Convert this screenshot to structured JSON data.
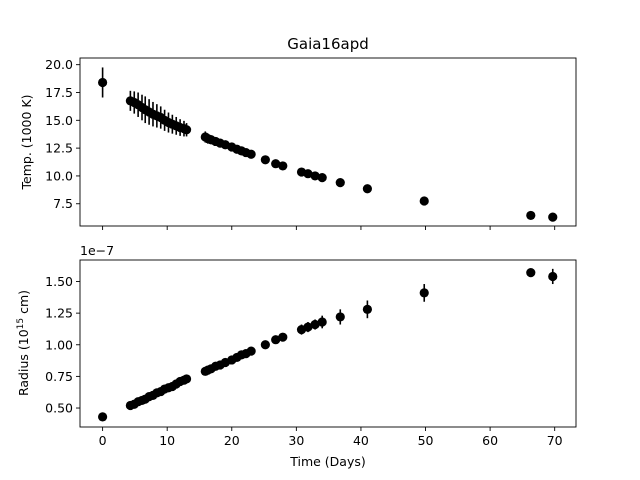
{
  "chart_data": [
    {
      "type": "scatter",
      "title": "Gaia16apd",
      "xlabel": "",
      "ylabel": "Temp. (1000 K)",
      "xlim": [
        -3.5,
        73.3
      ],
      "ylim": [
        5.5,
        20.6
      ],
      "xticks": [
        0,
        10,
        20,
        30,
        40,
        50,
        60,
        70
      ],
      "yticks": [
        7.5,
        10.0,
        12.5,
        15.0,
        17.5,
        20.0
      ],
      "ytick_labels": [
        "7.5",
        "10.0",
        "12.5",
        "15.0",
        "17.5",
        "20.0"
      ],
      "show_xtick_labels": false,
      "grid": false,
      "series": [
        {
          "marker": "circle",
          "color": "#000000",
          "x": [
            0.0,
            4.3,
            4.9,
            5.5,
            6.1,
            6.6,
            7.2,
            7.8,
            8.4,
            9.0,
            9.6,
            10.2,
            10.8,
            11.4,
            12.0,
            12.6,
            13.0,
            15.9,
            16.3,
            16.8,
            17.5,
            18.2,
            19.0,
            20.0,
            20.8,
            21.5,
            22.2,
            23.0,
            25.2,
            26.8,
            27.9,
            30.8,
            31.8,
            32.9,
            34.0,
            36.8,
            41.0,
            49.8,
            66.3,
            69.7
          ],
          "y": [
            18.4,
            16.75,
            16.6,
            16.4,
            16.15,
            15.95,
            15.75,
            15.55,
            15.4,
            15.25,
            15.0,
            14.8,
            14.65,
            14.5,
            14.35,
            14.25,
            14.15,
            13.5,
            13.35,
            13.25,
            13.1,
            12.95,
            12.8,
            12.6,
            12.4,
            12.25,
            12.1,
            11.95,
            11.45,
            11.1,
            10.9,
            10.35,
            10.2,
            10.0,
            9.85,
            9.4,
            8.85,
            7.75,
            6.45,
            6.3
          ],
          "yerr": [
            1.35,
            0.9,
            1.0,
            1.1,
            1.15,
            1.2,
            1.15,
            1.1,
            1.05,
            1.0,
            0.95,
            0.9,
            0.85,
            0.8,
            0.75,
            0.7,
            0.6,
            0.5,
            0.45,
            0.4,
            0.35,
            0.35,
            0.3,
            0.3,
            0.25,
            0.25,
            0.2,
            0.2,
            0.2,
            0.2,
            0.2,
            0.2,
            0.2,
            0.2,
            0.2,
            0.2,
            0.2,
            0.2,
            0.2,
            0.2
          ]
        }
      ]
    },
    {
      "type": "scatter",
      "title": "",
      "xlabel": "Time (Days)",
      "ylabel_base": "Radius (10",
      "ylabel_exponent": "15",
      "ylabel_suffix": " cm)",
      "offset_text": "1e−7",
      "xlim": [
        -3.5,
        73.3
      ],
      "ylim": [
        0.35,
        1.67
      ],
      "xticks": [
        0,
        10,
        20,
        30,
        40,
        50,
        60,
        70
      ],
      "xtick_labels": [
        "0",
        "10",
        "20",
        "30",
        "40",
        "50",
        "60",
        "70"
      ],
      "yticks": [
        0.5,
        0.75,
        1.0,
        1.25,
        1.5
      ],
      "ytick_labels": [
        "0.50",
        "0.75",
        "1.00",
        "1.25",
        "1.50"
      ],
      "grid": false,
      "series": [
        {
          "marker": "circle",
          "color": "#000000",
          "x": [
            0.0,
            4.3,
            4.9,
            5.5,
            6.1,
            6.6,
            7.2,
            7.8,
            8.4,
            9.0,
            9.6,
            10.2,
            10.8,
            11.4,
            12.0,
            12.6,
            13.0,
            15.9,
            16.3,
            16.8,
            17.5,
            18.2,
            19.0,
            20.0,
            20.8,
            21.5,
            22.2,
            23.0,
            25.2,
            26.8,
            27.9,
            30.8,
            31.8,
            32.9,
            34.0,
            36.8,
            41.0,
            49.8,
            66.3,
            69.7
          ],
          "y": [
            0.43,
            0.52,
            0.53,
            0.55,
            0.56,
            0.57,
            0.59,
            0.6,
            0.62,
            0.63,
            0.65,
            0.66,
            0.67,
            0.69,
            0.71,
            0.72,
            0.73,
            0.79,
            0.8,
            0.81,
            0.83,
            0.84,
            0.86,
            0.88,
            0.9,
            0.92,
            0.93,
            0.95,
            1.0,
            1.04,
            1.06,
            1.12,
            1.14,
            1.16,
            1.18,
            1.22,
            1.28,
            1.41,
            1.57,
            1.54
          ],
          "yerr": [
            0.0,
            0.02,
            0.02,
            0.02,
            0.02,
            0.02,
            0.02,
            0.02,
            0.02,
            0.02,
            0.02,
            0.02,
            0.02,
            0.02,
            0.02,
            0.02,
            0.02,
            0.02,
            0.02,
            0.02,
            0.02,
            0.02,
            0.02,
            0.02,
            0.02,
            0.02,
            0.02,
            0.02,
            0.03,
            0.03,
            0.03,
            0.04,
            0.04,
            0.04,
            0.05,
            0.06,
            0.07,
            0.07,
            0.0,
            0.06
          ]
        }
      ]
    }
  ]
}
